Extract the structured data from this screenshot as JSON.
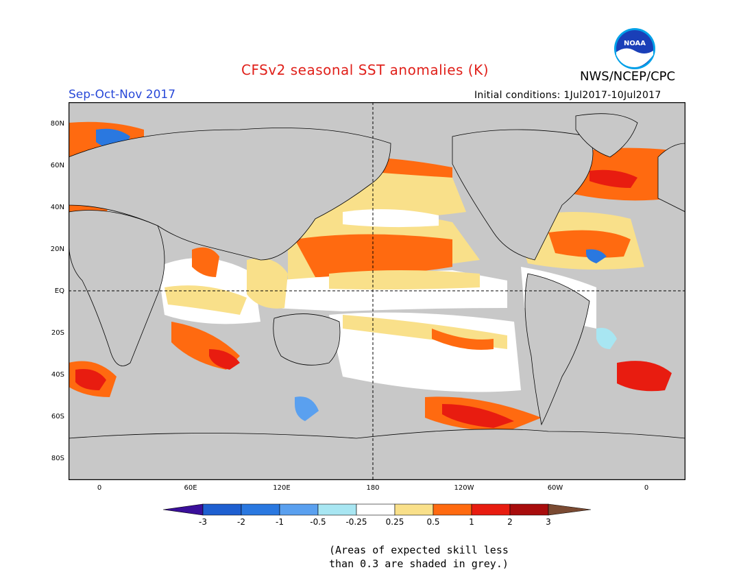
{
  "header": {
    "title": "CFSv2 seasonal SST anomalies (K)",
    "agency": "NWS/NCEP/CPC",
    "season": "Sep-Oct-Nov 2017",
    "initial_conditions": "Initial conditions: 1Jul2017-10Jul2017",
    "logo_text": "NOAA"
  },
  "map": {
    "projection": "cylindrical",
    "lat_labels": [
      "80N",
      "60N",
      "40N",
      "20N",
      "EQ",
      "20S",
      "40S",
      "60S",
      "80S"
    ],
    "lat_values": [
      80,
      60,
      40,
      20,
      0,
      -20,
      -40,
      -60,
      -80
    ],
    "lon_labels": [
      "0",
      "60E",
      "120E",
      "180",
      "120W",
      "60W",
      "0"
    ],
    "lon_values": [
      0,
      60,
      120,
      180,
      240,
      300,
      360
    ],
    "lon_range": [
      -20,
      385
    ],
    "lat_range": [
      -90,
      90
    ],
    "grey_meaning": "low-skill",
    "colors": {
      "land_grey": "#c8c8c8",
      "lt_m3": "#3a0f9a",
      "m3_m2": "#1e5fd0",
      "m2_m1": "#2a78e0",
      "m1_m05": "#5aa0ef",
      "m05_m025": "#a8e6f2",
      "m025_025": "#ffffff",
      "p025_p05": "#f9e08a",
      "p05_p1": "#ff6a10",
      "p1_p2": "#e81c10",
      "p2_p3": "#a80c0c",
      "gt_p3": "#7a4a32"
    }
  },
  "colorbar": {
    "labels": [
      "-3",
      "-2",
      "-1",
      "-0.5",
      "-0.25",
      "0.25",
      "0.5",
      "1",
      "2",
      "3"
    ],
    "colors": [
      "#3a0f9a",
      "#1e5fd0",
      "#2a78e0",
      "#5aa0ef",
      "#a8e6f2",
      "#ffffff",
      "#f9e08a",
      "#ff6a10",
      "#e81c10",
      "#a80c0c",
      "#7a4a32"
    ]
  },
  "footnote": {
    "line1": "(Areas of expected skill less",
    "line2": "than 0.3 are shaded in grey.)"
  }
}
